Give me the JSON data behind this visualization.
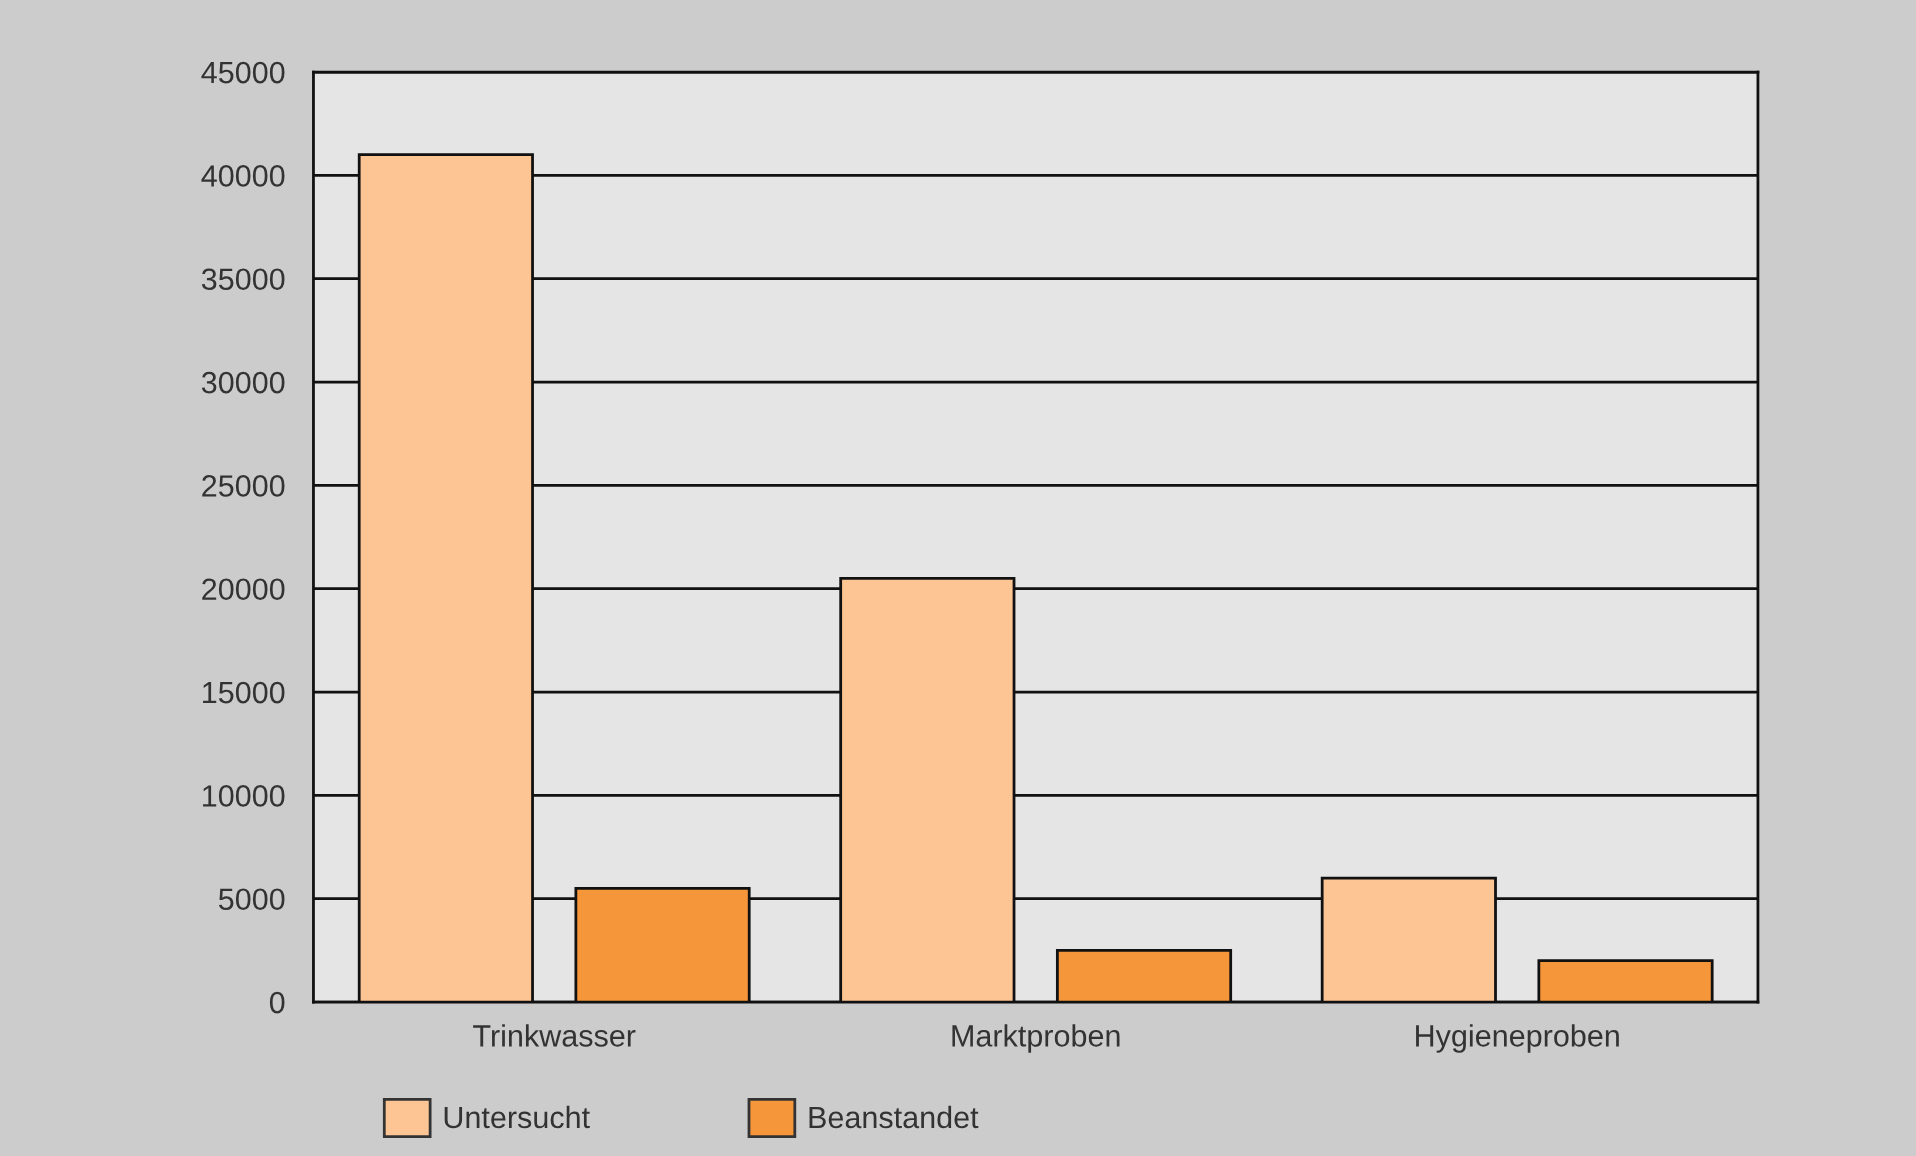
{
  "chart_data": {
    "type": "bar",
    "categories": [
      "Trinkwasser",
      "Marktproben",
      "Hygieneproben"
    ],
    "series": [
      {
        "name": "Untersucht",
        "color": "#fdc594",
        "values": [
          41000,
          20500,
          6000
        ]
      },
      {
        "name": "Beanstandet",
        "color": "#f5963a",
        "values": [
          5500,
          2500,
          2000
        ]
      }
    ],
    "ylim": [
      0,
      45000
    ],
    "yticks": [
      0,
      5000,
      10000,
      15000,
      20000,
      25000,
      30000,
      35000,
      40000,
      45000
    ],
    "grid": "y",
    "legend": "bottom"
  }
}
